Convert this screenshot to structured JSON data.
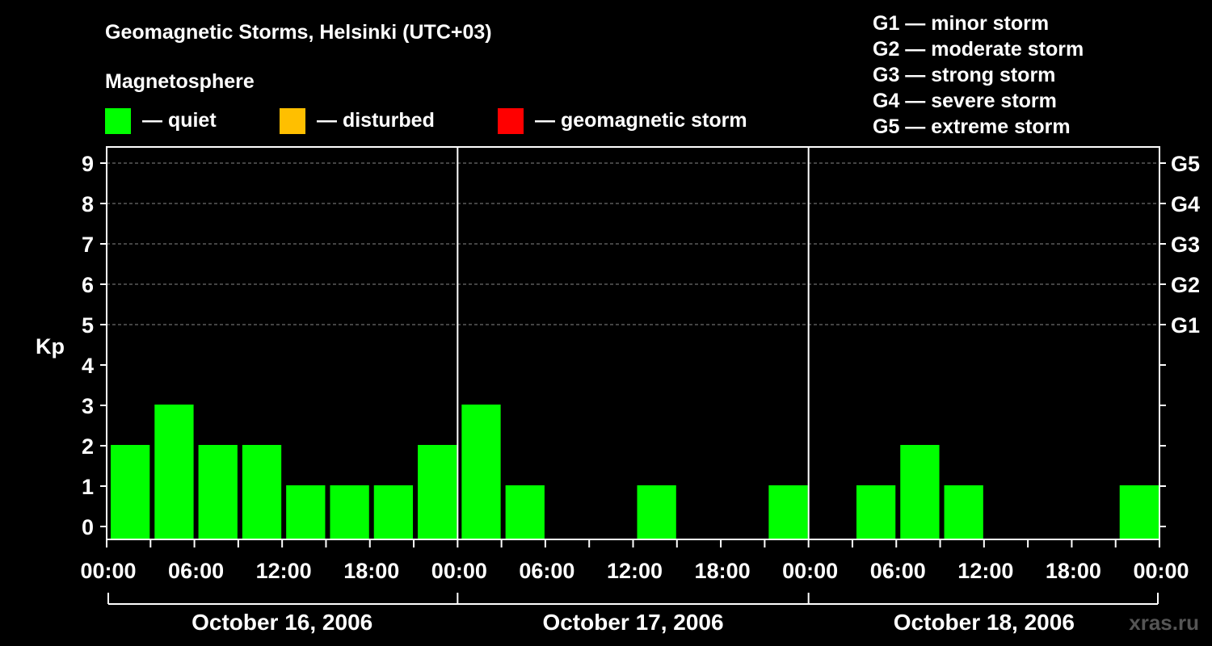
{
  "chart_data": {
    "type": "bar",
    "title": "Geomagnetic Storms, Helsinki (UTC+03)",
    "ylabel": "Kp",
    "ylim": [
      0,
      9
    ],
    "yticks": [
      "0",
      "1",
      "2",
      "3",
      "4",
      "5",
      "6",
      "7",
      "8",
      "9"
    ],
    "right_ticks": [
      {
        "kp": 5,
        "label": "G1"
      },
      {
        "kp": 6,
        "label": "G2"
      },
      {
        "kp": 7,
        "label": "G3"
      },
      {
        "kp": 8,
        "label": "G4"
      },
      {
        "kp": 9,
        "label": "G5"
      }
    ],
    "xtick_labels": [
      "00:00",
      "06:00",
      "12:00",
      "18:00",
      "00:00",
      "06:00",
      "12:00",
      "18:00",
      "00:00",
      "06:00",
      "12:00",
      "18:00",
      "00:00"
    ],
    "days": [
      "October 16, 2006",
      "October 17, 2006",
      "October 18, 2006"
    ],
    "bins_per_day": 8,
    "values": [
      2,
      3,
      2,
      2,
      1,
      1,
      1,
      2,
      3,
      1,
      0,
      0,
      1,
      0,
      0,
      1,
      0,
      1,
      2,
      1,
      0,
      0,
      0,
      1
    ],
    "grid": true,
    "magnetosphere_heading": "Magnetosphere",
    "legend": [
      {
        "label": "— quiet",
        "color": "#00ff00"
      },
      {
        "label": "— disturbed",
        "color": "#ffbf00"
      },
      {
        "label": "— geomagnetic storm",
        "color": "#ff0000"
      }
    ],
    "storm_scale": [
      "G1 — minor storm",
      "G2 — moderate storm",
      "G3 — strong storm",
      "G4 — severe storm",
      "G5 — extreme storm"
    ],
    "bar_color": "#00ff00"
  },
  "watermark": "xras.ru"
}
